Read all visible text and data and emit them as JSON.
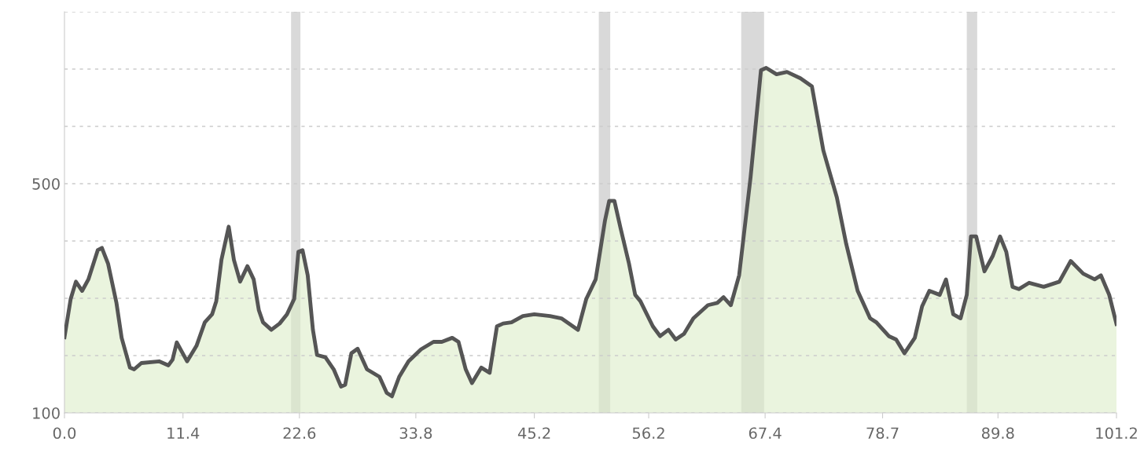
{
  "chart_data": {
    "type": "area",
    "xlim": [
      0,
      101.2
    ],
    "ylim": [
      100,
      800
    ],
    "xticks": [
      {
        "value": 0,
        "label": "0.0"
      },
      {
        "value": 11.4,
        "label": "11.4"
      },
      {
        "value": 22.6,
        "label": "22.6"
      },
      {
        "value": 33.8,
        "label": "33.8"
      },
      {
        "value": 45.2,
        "label": "45.2"
      },
      {
        "value": 56.2,
        "label": "56.2"
      },
      {
        "value": 67.4,
        "label": "67.4"
      },
      {
        "value": 78.7,
        "label": "78.7"
      },
      {
        "value": 89.8,
        "label": "89.8"
      },
      {
        "value": 101.2,
        "label": "101.2"
      }
    ],
    "yticks": [
      100,
      {
        "value": 200,
        "label": null
      },
      {
        "value": 300,
        "label": null
      },
      {
        "value": 400,
        "label": null
      },
      500,
      {
        "value": 600,
        "label": null
      },
      {
        "value": 700,
        "label": null
      },
      {
        "value": 800,
        "label": null
      }
    ],
    "grid": "y",
    "bands": [
      {
        "axis": "x",
        "from": 21.8,
        "to": 22.7,
        "color": "#d9d9d9"
      },
      {
        "axis": "x",
        "from": 51.4,
        "to": 52.5,
        "color": "#d9d9d9"
      },
      {
        "axis": "x",
        "from": 65.1,
        "to": 67.3,
        "color": "#d9d9d9"
      },
      {
        "axis": "x",
        "from": 86.8,
        "to": 87.8,
        "color": "#d9d9d9"
      }
    ],
    "series": [
      {
        "color": "#555555",
        "x": [
          0,
          0.6,
          1.1,
          1.7,
          2.3,
          3.2,
          3.6,
          4.2,
          5.0,
          5.5,
          6.3,
          6.7,
          7.4,
          9.1,
          10.0,
          10.4,
          10.8,
          11.8,
          12.7,
          13.5,
          14.2,
          14.6,
          15.1,
          15.8,
          16.3,
          16.9,
          17.6,
          18.2,
          18.7,
          19.1,
          19.9,
          20.7,
          21.4,
          22.1,
          22.5,
          22.9,
          23.4,
          23.9,
          24.3,
          25.1,
          25.9,
          26.6,
          27.0,
          27.6,
          28.2,
          29.1,
          30.3,
          31.0,
          31.5,
          32.2,
          33.1,
          34.3,
          35.5,
          36.3,
          37.3,
          37.9,
          38.6,
          39.2,
          40.1,
          40.9,
          41.6,
          42.2,
          43.0,
          44.1,
          45.2,
          46.7,
          47.8,
          49.4,
          50.2,
          51.1,
          52.0,
          52.4,
          52.9,
          53.5,
          54.3,
          54.9,
          55.4,
          56.6,
          57.3,
          58.1,
          58.8,
          59.6,
          60.5,
          61.9,
          62.8,
          63.4,
          64.1,
          64.9,
          66.0,
          67.0,
          67.5,
          68.5,
          69.5,
          70.8,
          71.9,
          73.0,
          74.3,
          75.2,
          76.3,
          77.5,
          78.1,
          79.3,
          80.0,
          80.8,
          81.8,
          82.5,
          83.2,
          84.2,
          84.8,
          85.5,
          86.2,
          86.8,
          87.2,
          87.7,
          88.5,
          89.3,
          90.0,
          90.6,
          91.2,
          91.8,
          92.8,
          94.2,
          95.7,
          96.8,
          98.0,
          99.1,
          99.7,
          100.5,
          101.2
        ],
        "values": [
          232,
          299,
          329,
          313,
          333,
          384,
          388,
          360,
          292,
          231,
          179,
          176,
          187,
          190,
          183,
          193,
          223,
          190,
          217,
          258,
          272,
          295,
          367,
          425,
          367,
          329,
          356,
          333,
          279,
          258,
          245,
          256,
          272,
          299,
          381,
          384,
          340,
          245,
          201,
          197,
          176,
          146,
          149,
          204,
          212,
          176,
          163,
          135,
          129,
          163,
          190,
          211,
          224,
          224,
          231,
          224,
          176,
          152,
          179,
          170,
          251,
          256,
          258,
          269,
          272,
          269,
          265,
          245,
          299,
          333,
          436,
          470,
          470,
          422,
          361,
          306,
          295,
          251,
          234,
          245,
          228,
          238,
          265,
          288,
          292,
          302,
          288,
          340,
          511,
          698,
          702,
          691,
          695,
          684,
          670,
          558,
          476,
          395,
          313,
          265,
          258,
          234,
          228,
          204,
          231,
          286,
          313,
          306,
          333,
          272,
          265,
          306,
          408,
          408,
          347,
          374,
          408,
          381,
          320,
          316,
          327,
          320,
          329,
          365,
          343,
          333,
          340,
          306,
          255
        ]
      }
    ]
  }
}
